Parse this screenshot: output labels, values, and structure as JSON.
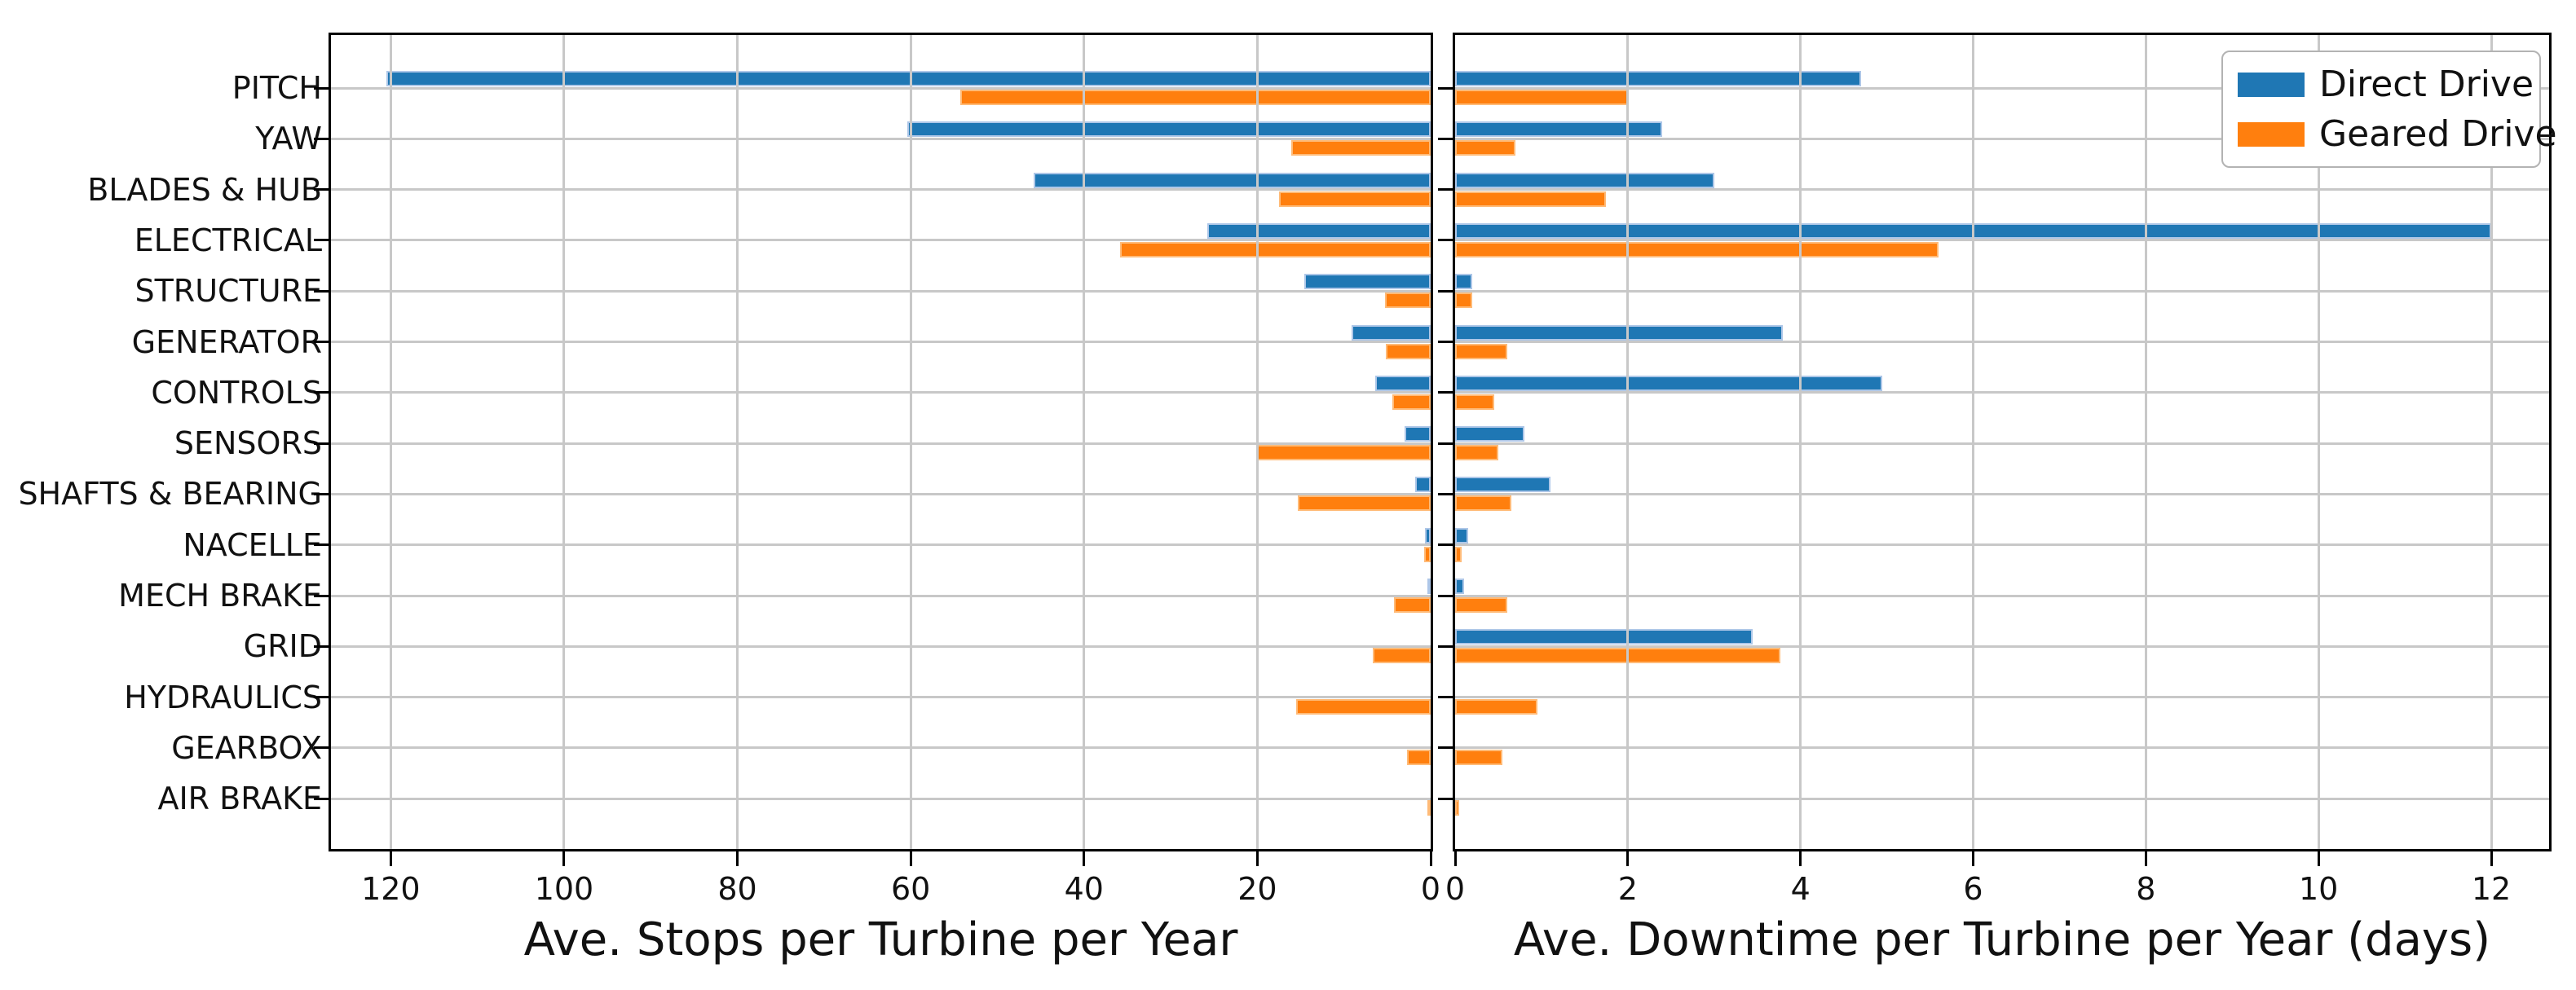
{
  "chart_data": {
    "type": "bar",
    "orientation": "horizontal-grouped",
    "title": "",
    "categories": [
      "PITCH",
      "YAW",
      "BLADES & HUB",
      "ELECTRICAL",
      "STRUCTURE",
      "GENERATOR",
      "CONTROLS",
      "SENSORS",
      "SHAFTS & BEARING",
      "NACELLE",
      "MECH BRAKE",
      "GRID",
      "HYDRAULICS",
      "GEARBOX",
      "AIR BRAKE"
    ],
    "series_names": [
      "Direct Drive",
      "Geared Drive"
    ],
    "grid": true,
    "colors": {
      "direct_drive": "#1f77b4",
      "geared_drive": "#ff7f0e",
      "direct_drive_edge": "#aec7e8",
      "geared_drive_edge": "#ffbb78",
      "grid_line": "#c8c8c8",
      "spine": "#000000",
      "text": "#111111",
      "legend_border": "#b3b3b3",
      "background": "#ffffff"
    },
    "legend": {
      "position": "upper-right",
      "entries": [
        {
          "label": "Direct Drive",
          "color": "#1f77b4"
        },
        {
          "label": "Geared Drive",
          "color": "#ff7f0e"
        }
      ]
    },
    "panels": [
      {
        "id": "stops",
        "xlabel": "Ave. Stops per Turbine per Year",
        "axis_reversed": true,
        "xlim": [
          126.9,
          0
        ],
        "ticks": [
          120,
          100,
          80,
          60,
          40,
          20,
          0
        ],
        "series": [
          {
            "name": "Direct Drive",
            "values": [
              120.5,
              60.4,
              45.8,
              25.8,
              14.6,
              9.1,
              6.4,
              3.0,
              1.8,
              0.7,
              0.4,
              0,
              0,
              0,
              0
            ]
          },
          {
            "name": "Geared Drive",
            "values": [
              54.3,
              16.1,
              17.5,
              35.8,
              5.3,
              5.2,
              4.4,
              20.0,
              15.3,
              0.8,
              4.2,
              6.7,
              15.5,
              2.7,
              0.35
            ]
          }
        ]
      },
      {
        "id": "downtime",
        "xlabel": "Ave. Downtime per Turbine per Year (days)",
        "axis_reversed": false,
        "xlim": [
          0,
          12.67
        ],
        "ticks": [
          0,
          2,
          4,
          6,
          8,
          10,
          12
        ],
        "series": [
          {
            "name": "Direct Drive",
            "values": [
              4.7,
              2.4,
              3.0,
              12.0,
              0.2,
              3.8,
              4.95,
              0.8,
              1.1,
              0.15,
              0.1,
              3.45,
              0,
              0,
              0
            ]
          },
          {
            "name": "Geared Drive",
            "values": [
              2.0,
              0.7,
              1.75,
              5.6,
              0.2,
              0.6,
              0.45,
              0.5,
              0.65,
              0.08,
              0.6,
              3.77,
              0.95,
              0.55,
              0.05
            ]
          }
        ]
      }
    ]
  }
}
